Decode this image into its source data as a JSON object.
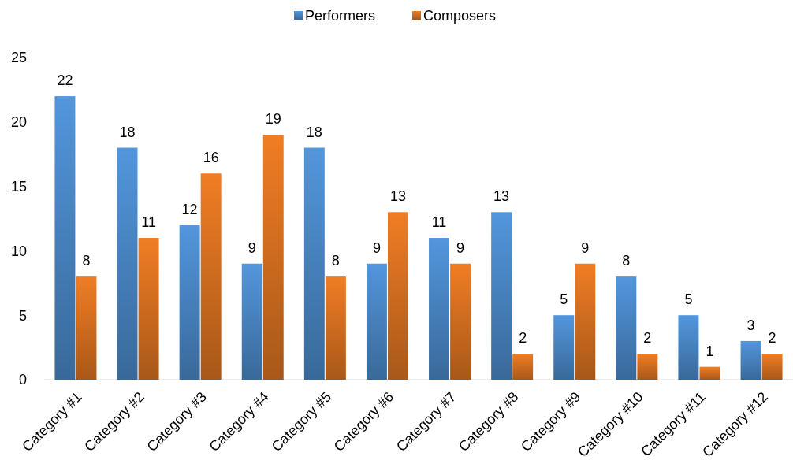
{
  "chart_data": {
    "type": "bar",
    "categories": [
      "Category #1",
      "Category #2",
      "Category #3",
      "Category #4",
      "Category #5",
      "Category #6",
      "Category #7",
      "Category #8",
      "Category #9",
      "Category #10",
      "Category #11",
      "Category #12"
    ],
    "series": [
      {
        "name": "Performers",
        "color": "#5296dc",
        "values": [
          22,
          18,
          12,
          9,
          18,
          9,
          11,
          13,
          5,
          8,
          5,
          3
        ]
      },
      {
        "name": "Composers",
        "color": "#f07d24",
        "values": [
          8,
          11,
          16,
          19,
          8,
          13,
          9,
          2,
          9,
          2,
          1,
          2
        ]
      }
    ],
    "ylim": [
      0,
      25
    ],
    "yticks": [
      0,
      5,
      10,
      15,
      20,
      25
    ],
    "data_labels": true,
    "legend": "top",
    "grid": false
  }
}
